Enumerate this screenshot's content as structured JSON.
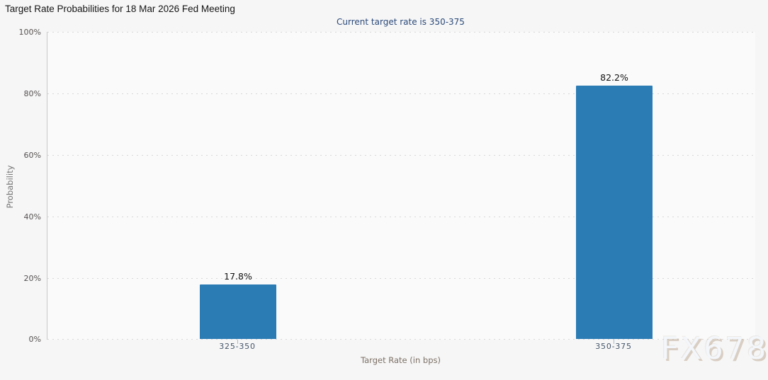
{
  "header": {
    "title": "Target Rate Probabilities for 18 Mar 2026 Fed Meeting",
    "subtitle": "Current target rate is 350-375"
  },
  "watermark": {
    "text": "FX678"
  },
  "chart_data": {
    "type": "bar",
    "title": "Target Rate Probabilities for 18 Mar 2026 Fed Meeting",
    "subtitle": "Current target rate is 350-375",
    "categories": [
      "325-350",
      "350-375"
    ],
    "values": [
      17.8,
      82.2
    ],
    "value_labels": [
      "17.8%",
      "82.2%"
    ],
    "xlabel": "Target Rate (in bps)",
    "ylabel": "Probability",
    "ylim": [
      0,
      100
    ],
    "yticks_top_to_bottom": [
      "100%",
      "80%",
      "60%",
      "40%",
      "20%",
      "0%"
    ],
    "grid": "horizontal-dotted",
    "legend": "none",
    "bar_color": "#2b7cb5",
    "background_color": "#f6f6f6",
    "subtitle_color": "#2b4a7a"
  }
}
